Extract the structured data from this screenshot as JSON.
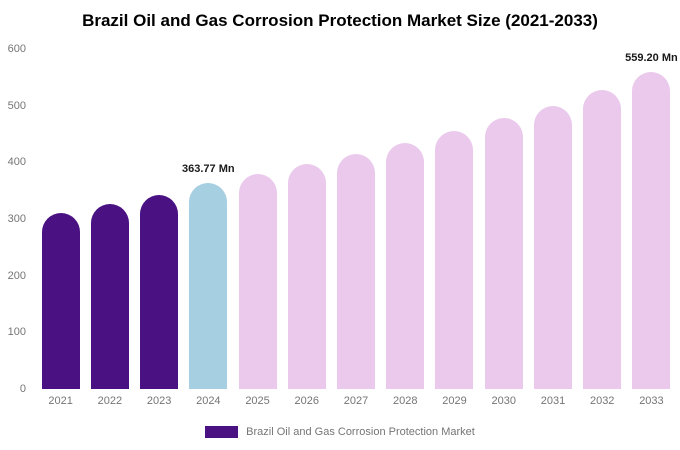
{
  "title": "Brazil Oil and Gas Corrosion Protection Market Size (2021-2033)",
  "chart_data": {
    "type": "bar",
    "title": "Brazil Oil and Gas Corrosion Protection Market Size (2021-2033)",
    "categories": [
      "2021",
      "2022",
      "2023",
      "2024",
      "2025",
      "2026",
      "2027",
      "2028",
      "2029",
      "2030",
      "2031",
      "2032",
      "2033"
    ],
    "values": [
      310,
      326,
      342,
      363.77,
      380,
      397,
      415,
      434,
      456,
      478,
      500,
      528,
      559.2
    ],
    "unit": "Mn",
    "ylim": [
      0,
      600
    ],
    "yticks": [
      0,
      100,
      200,
      300,
      400,
      500,
      600
    ],
    "grid": false,
    "legend_position": "bottom",
    "colors": {
      "dark": "#4a1182",
      "highlight": "#a7cfe2",
      "light": "#eac9ec"
    },
    "bar_color_keys": [
      "dark",
      "dark",
      "dark",
      "highlight",
      "light",
      "light",
      "light",
      "light",
      "light",
      "light",
      "light",
      "light",
      "light"
    ],
    "annotations": [
      {
        "category": "2024",
        "text": "363.77 Mn"
      },
      {
        "category": "2033",
        "text": "559.20 Mn"
      }
    ],
    "legend": [
      {
        "label": "Brazil Oil and Gas Corrosion Protection Market",
        "color": "#4a1182"
      }
    ]
  }
}
